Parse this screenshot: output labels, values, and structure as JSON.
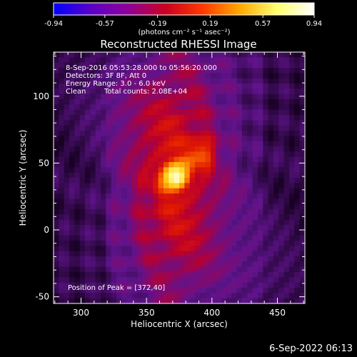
{
  "colorbar": {
    "tick_labels": [
      "-0.94",
      "-0.57",
      "-0.19",
      "0.19",
      "0.57",
      "0.94"
    ],
    "tick_values": [
      -0.94,
      -0.57,
      -0.19,
      0.19,
      0.57,
      0.94
    ],
    "range": [
      -0.94,
      0.94
    ],
    "unit_label": "(photons cm⁻² s⁻¹ asec⁻²)",
    "gradient_colors": [
      "#0000ff",
      "#5b00c6",
      "#8e0098",
      "#c80020",
      "#ff3800",
      "#ffa800",
      "#ffff70",
      "#ffffff"
    ]
  },
  "chart_data": {
    "type": "heatmap",
    "title": "Reconstructed RHESSI Image",
    "xlabel": "Heliocentric X (arcsec)",
    "ylabel": "Heliocentric Y (arcsec)",
    "xlim": [
      279,
      471
    ],
    "ylim": [
      -55,
      133
    ],
    "x_ticks": [
      300,
      350,
      400,
      450
    ],
    "y_ticks": [
      -50,
      0,
      50,
      100
    ],
    "annotations": {
      "time_range": "8-Sep-2016 05:53:28.000 to 05:56:20.000",
      "detectors": "Detectors: 3F 8F, Att 0",
      "energy": "Energy Range: 3.0 - 6.0 keV",
      "clean": "Clean",
      "counts": "Total counts: 2.08E+04",
      "peak": "Position of Peak = [372,40]"
    },
    "peak": {
      "x": 372,
      "y": 40
    },
    "secondary_source": {
      "x": 392,
      "y": 57
    }
  },
  "footer": {
    "timestamp": "6-Sep-2022 06:13"
  }
}
